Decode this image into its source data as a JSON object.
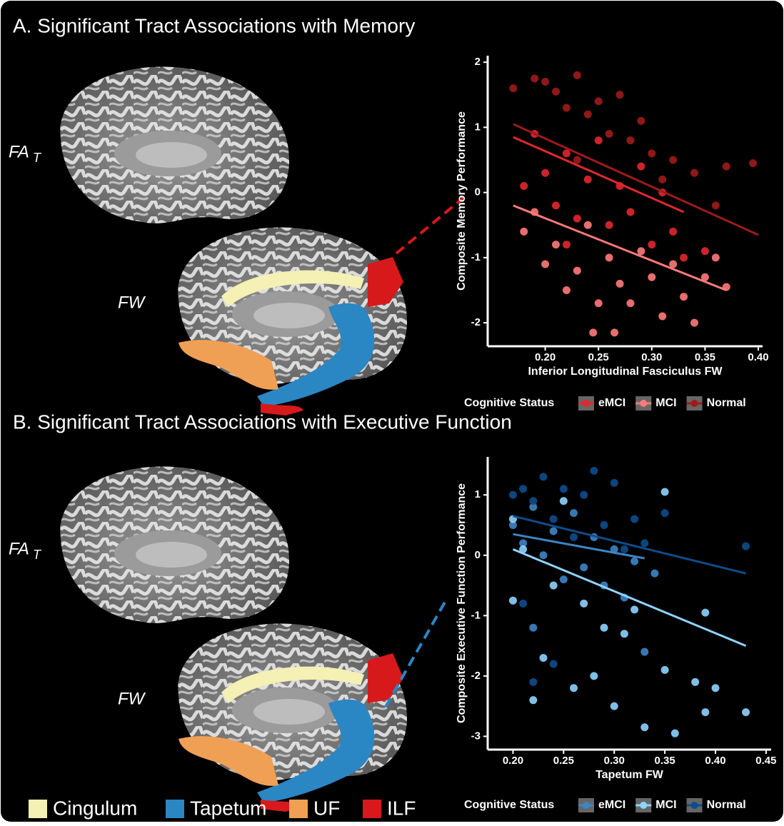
{
  "chart_data": [
    {
      "type": "scatter",
      "title": "A. Significant Tract Associations with Memory",
      "x_label": "Inferior Longitudinal Fasciculus FW",
      "y_label": "Composite Memory Performance",
      "legend_title": "Cognitive Status",
      "xlim": [
        0.146,
        0.404
      ],
      "ylim": [
        -2.36,
        2.1
      ],
      "xticks": [
        {
          "value": 0.2,
          "label": "0.20"
        },
        {
          "value": 0.25,
          "label": "0.25"
        },
        {
          "value": 0.3,
          "label": "0.30"
        },
        {
          "value": 0.35,
          "label": "0.35"
        },
        {
          "value": 0.4,
          "label": "0.40"
        }
      ],
      "yticks": [
        2,
        1,
        0,
        -1,
        -2
      ],
      "series": [
        {
          "name": "eMCI",
          "color": "#e0282e",
          "x": [
            0.18,
            0.19,
            0.2,
            0.21,
            0.22,
            0.23,
            0.24,
            0.25,
            0.26,
            0.27,
            0.28,
            0.29,
            0.3,
            0.31,
            0.32,
            0.33,
            0.35,
            0.22
          ],
          "values": [
            0.1,
            0.9,
            0.3,
            -0.2,
            0.6,
            -0.4,
            0.2,
            0.8,
            -0.5,
            0.1,
            -0.3,
            0.4,
            -0.8,
            0.0,
            -0.6,
            -1.0,
            -0.9,
            -0.8
          ],
          "fit": {
            "x": [
              0.17,
              0.33
            ],
            "y": [
              0.85,
              -0.3
            ]
          }
        },
        {
          "name": "MCI",
          "color": "#ff7a7a",
          "x": [
            0.18,
            0.19,
            0.2,
            0.21,
            0.22,
            0.23,
            0.24,
            0.245,
            0.25,
            0.26,
            0.265,
            0.27,
            0.28,
            0.29,
            0.3,
            0.31,
            0.32,
            0.33,
            0.34,
            0.35,
            0.36,
            0.37
          ],
          "values": [
            -0.6,
            -0.3,
            -1.1,
            -0.8,
            -1.5,
            -1.2,
            -0.5,
            -2.15,
            -1.7,
            -1.0,
            -2.15,
            -1.4,
            -1.7,
            -0.9,
            -1.3,
            -1.9,
            -1.1,
            -1.6,
            -2.0,
            -1.3,
            -1.0,
            -1.45
          ],
          "fit": {
            "x": [
              0.17,
              0.37
            ],
            "y": [
              -0.2,
              -1.5
            ]
          }
        },
        {
          "name": "Normal",
          "color": "#9e1b1b",
          "x": [
            0.17,
            0.19,
            0.2,
            0.21,
            0.22,
            0.23,
            0.24,
            0.25,
            0.26,
            0.27,
            0.28,
            0.29,
            0.3,
            0.31,
            0.32,
            0.34,
            0.36,
            0.37,
            0.395,
            0.23
          ],
          "values": [
            1.6,
            1.75,
            1.7,
            1.55,
            1.3,
            1.8,
            1.2,
            1.4,
            0.9,
            1.5,
            0.8,
            1.1,
            0.6,
            0.2,
            0.5,
            0.3,
            -0.2,
            0.4,
            0.45,
            0.5
          ],
          "fit": {
            "x": [
              0.17,
              0.4
            ],
            "y": [
              1.05,
              -0.65
            ]
          }
        }
      ]
    },
    {
      "type": "scatter",
      "title": "B. Significant Tract Associations with Executive Function",
      "x_label": "Tapetum FW",
      "y_label": "Composite Executive Function Performance",
      "legend_title": "Cognitive Status",
      "xlim": [
        0.175,
        0.455
      ],
      "ylim": [
        -3.22,
        1.63
      ],
      "xticks": [
        {
          "value": 0.2,
          "label": "0.20"
        },
        {
          "value": 0.25,
          "label": "0.25"
        },
        {
          "value": 0.3,
          "label": "0.30"
        },
        {
          "value": 0.35,
          "label": "0.35"
        },
        {
          "value": 0.4,
          "label": "0.40"
        },
        {
          "value": 0.45,
          "label": "0.45"
        }
      ],
      "yticks": [
        1,
        0,
        -1,
        -2,
        -3
      ],
      "series": [
        {
          "name": "eMCI",
          "color": "#3d85c6",
          "x": [
            0.2,
            0.21,
            0.22,
            0.23,
            0.24,
            0.25,
            0.26,
            0.27,
            0.28,
            0.29,
            0.3,
            0.31,
            0.32,
            0.34,
            0.22,
            0.33
          ],
          "values": [
            0.5,
            0.2,
            0.8,
            0.0,
            0.4,
            -0.4,
            0.7,
            -0.2,
            0.3,
            -0.5,
            0.1,
            -0.7,
            -0.1,
            -0.3,
            -1.2,
            -1.6
          ],
          "fit": {
            "x": [
              0.2,
              0.33
            ],
            "y": [
              0.35,
              -0.05
            ]
          }
        },
        {
          "name": "MCI",
          "color": "#8fd3ff",
          "x": [
            0.2,
            0.21,
            0.2,
            0.22,
            0.23,
            0.24,
            0.25,
            0.26,
            0.27,
            0.28,
            0.29,
            0.3,
            0.31,
            0.32,
            0.33,
            0.35,
            0.36,
            0.38,
            0.39,
            0.4,
            0.43,
            0.39,
            0.35
          ],
          "values": [
            0.6,
            0.1,
            -0.75,
            -2.4,
            -1.7,
            -0.5,
            0.9,
            -2.2,
            -0.8,
            -2.0,
            -1.2,
            -2.5,
            -1.3,
            -0.9,
            -2.85,
            -1.9,
            -2.95,
            -2.1,
            -2.6,
            -2.2,
            -2.6,
            -0.95,
            1.05
          ],
          "fit": {
            "x": [
              0.2,
              0.43
            ],
            "y": [
              0.1,
              -1.5
            ]
          }
        },
        {
          "name": "Normal",
          "color": "#0e4c8c",
          "x": [
            0.2,
            0.21,
            0.22,
            0.23,
            0.24,
            0.25,
            0.26,
            0.27,
            0.28,
            0.29,
            0.3,
            0.31,
            0.32,
            0.33,
            0.35,
            0.24,
            0.22,
            0.21,
            0.43
          ],
          "values": [
            1.0,
            1.1,
            0.9,
            1.3,
            0.6,
            1.1,
            0.3,
            1.0,
            1.4,
            0.5,
            1.2,
            0.1,
            0.6,
            0.2,
            0.7,
            -1.8,
            -2.1,
            -0.8,
            0.15
          ],
          "fit": {
            "x": [
              0.2,
              0.43
            ],
            "y": [
              0.65,
              -0.3
            ]
          }
        }
      ]
    }
  ],
  "brain_labels": {
    "fa": "FA",
    "fa_sub": "T",
    "fw": "FW"
  },
  "tract_legend": [
    {
      "name": "Cingulum",
      "color": "#f5f0b4"
    },
    {
      "name": "Tapetum",
      "color": "#2b86c4"
    },
    {
      "name": "UF",
      "color": "#f0a055"
    },
    {
      "name": "ILF",
      "color": "#d7191c"
    }
  ]
}
